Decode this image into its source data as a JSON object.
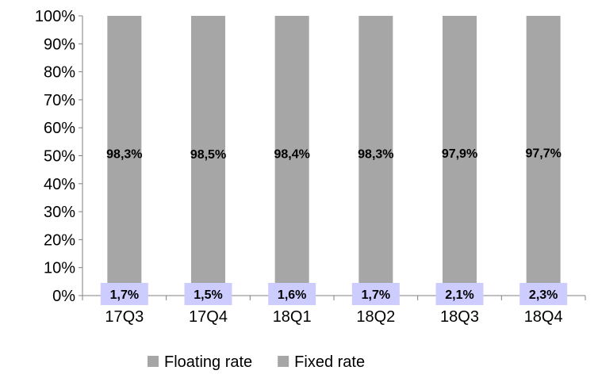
{
  "chart_data": {
    "type": "bar",
    "stacked": true,
    "percent_stacked": true,
    "categories": [
      "17Q3",
      "17Q4",
      "18Q1",
      "18Q2",
      "18Q3",
      "18Q4"
    ],
    "series": [
      {
        "name": "Floating rate",
        "values": [
          98.3,
          98.5,
          98.4,
          98.3,
          97.9,
          97.7
        ],
        "labels": [
          "98,3%",
          "98,5%",
          "98,4%",
          "98,3%",
          "97,9%",
          "97,7%"
        ],
        "color": "#a6a6a6"
      },
      {
        "name": "Fixed rate",
        "values": [
          1.7,
          1.5,
          1.6,
          1.7,
          2.1,
          2.3
        ],
        "labels": [
          "1,7%",
          "1,5%",
          "1,6%",
          "1,7%",
          "2,1%",
          "2,3%"
        ],
        "color": "#a6a6a6",
        "label_background": "#ccccff"
      }
    ],
    "y_ticks": [
      "0%",
      "10%",
      "20%",
      "30%",
      "40%",
      "50%",
      "60%",
      "70%",
      "80%",
      "90%",
      "100%"
    ],
    "ylim": [
      0,
      100
    ],
    "title": "",
    "xlabel": "",
    "ylabel": "",
    "grid": false,
    "legend_position": "bottom"
  }
}
